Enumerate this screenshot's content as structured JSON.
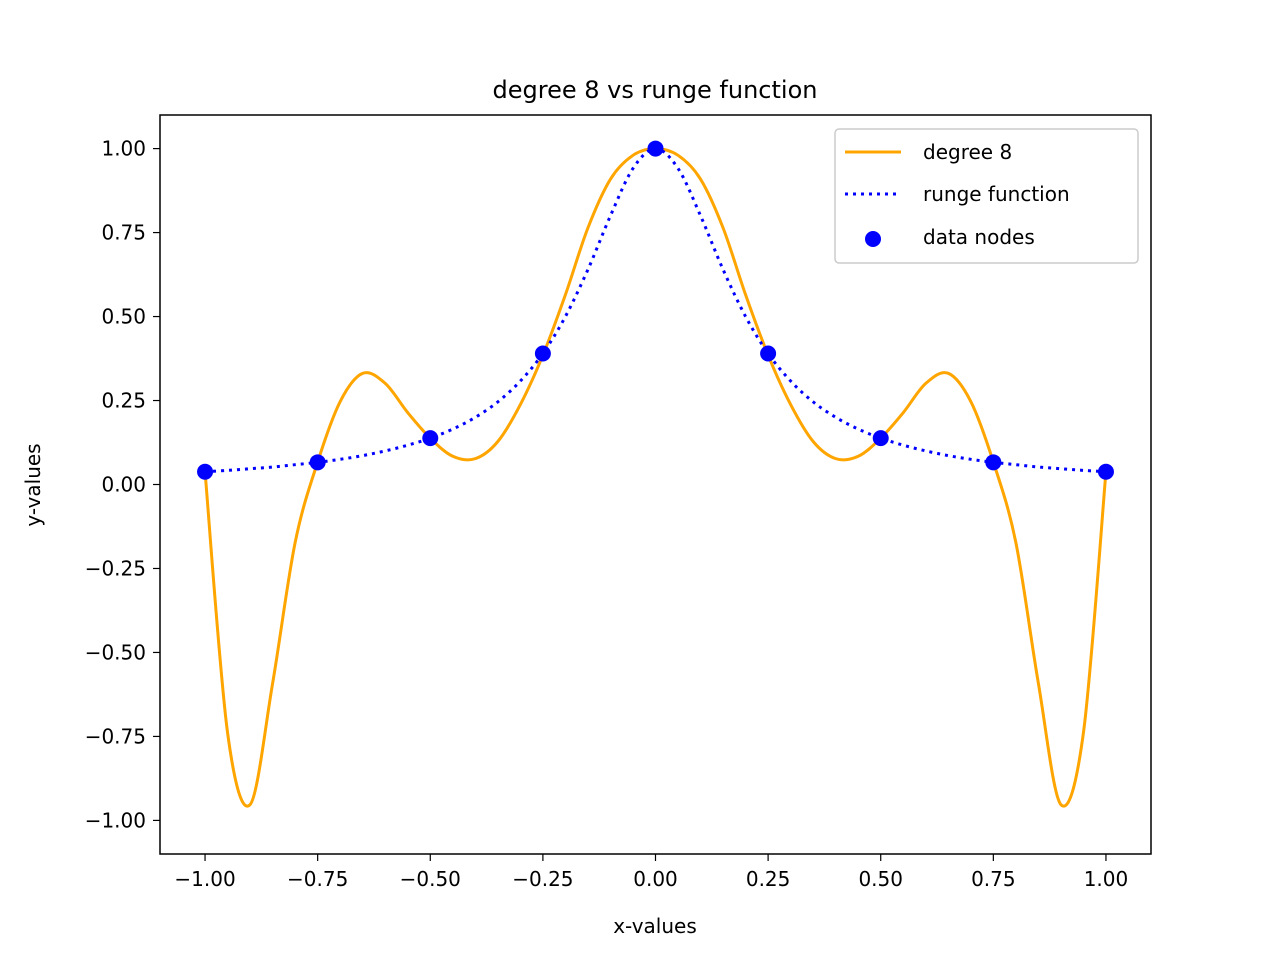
{
  "chart_data": {
    "type": "line",
    "title": "degree 8 vs runge function",
    "xlabel": "x-values",
    "ylabel": "y-values",
    "xlim": [
      -1.1,
      1.1
    ],
    "ylim": [
      -1.1,
      1.1
    ],
    "x_ticks": [
      -1.0,
      -0.75,
      -0.5,
      -0.25,
      0.0,
      0.25,
      0.5,
      0.75,
      1.0
    ],
    "x_tick_labels": [
      "−1.00",
      "−0.75",
      "−0.50",
      "−0.25",
      "0.00",
      "0.25",
      "0.50",
      "0.75",
      "1.00"
    ],
    "y_ticks": [
      1.0,
      0.75,
      0.5,
      0.25,
      0.0,
      -0.25,
      -0.5,
      -0.75,
      -1.0
    ],
    "y_tick_labels": [
      "1.00",
      "0.75",
      "0.50",
      "0.25",
      "0.00",
      "−0.25",
      "−0.50",
      "−0.75",
      "−1.00"
    ],
    "grid": false,
    "legend_position": "top-right",
    "x": [
      -1.0,
      -0.95,
      -0.9,
      -0.85,
      -0.8,
      -0.75,
      -0.7,
      -0.65,
      -0.6,
      -0.55,
      -0.5,
      -0.45,
      -0.4,
      -0.35,
      -0.3,
      -0.25,
      -0.2,
      -0.15,
      -0.1,
      -0.05,
      0.0,
      0.05,
      0.1,
      0.15,
      0.2,
      0.25,
      0.3,
      0.35,
      0.4,
      0.45,
      0.5,
      0.55,
      0.6,
      0.65,
      0.7,
      0.75,
      0.8,
      0.85,
      0.9,
      0.95,
      1.0
    ],
    "series": [
      {
        "name": "degree 8",
        "style": "solid",
        "color": "#ffa500",
        "y": [
          0.038,
          -0.739,
          -0.953,
          -0.592,
          -0.173,
          0.067,
          0.247,
          0.331,
          0.301,
          0.214,
          0.138,
          0.084,
          0.077,
          0.128,
          0.238,
          0.385,
          0.565,
          0.764,
          0.909,
          0.98,
          1.0,
          0.98,
          0.909,
          0.764,
          0.565,
          0.385,
          0.238,
          0.128,
          0.077,
          0.084,
          0.138,
          0.214,
          0.301,
          0.331,
          0.247,
          0.067,
          -0.173,
          -0.592,
          -0.953,
          -0.739,
          0.038
        ]
      },
      {
        "name": "runge function",
        "style": "dotted",
        "color": "#0000ff",
        "y": [
          0.038,
          0.042,
          0.047,
          0.052,
          0.059,
          0.066,
          0.075,
          0.086,
          0.1,
          0.117,
          0.138,
          0.165,
          0.2,
          0.246,
          0.308,
          0.39,
          0.5,
          0.64,
          0.8,
          0.941,
          1.0,
          0.941,
          0.8,
          0.64,
          0.5,
          0.39,
          0.308,
          0.246,
          0.2,
          0.165,
          0.138,
          0.117,
          0.1,
          0.086,
          0.075,
          0.066,
          0.059,
          0.052,
          0.047,
          0.042,
          0.038
        ]
      },
      {
        "name": "data nodes",
        "style": "scatter",
        "color": "#0000ff",
        "x": [
          -1.0,
          -0.75,
          -0.5,
          -0.25,
          0.0,
          0.25,
          0.5,
          0.75,
          1.0
        ],
        "y": [
          0.038,
          0.066,
          0.138,
          0.39,
          1.0,
          0.39,
          0.138,
          0.066,
          0.038
        ]
      }
    ]
  }
}
